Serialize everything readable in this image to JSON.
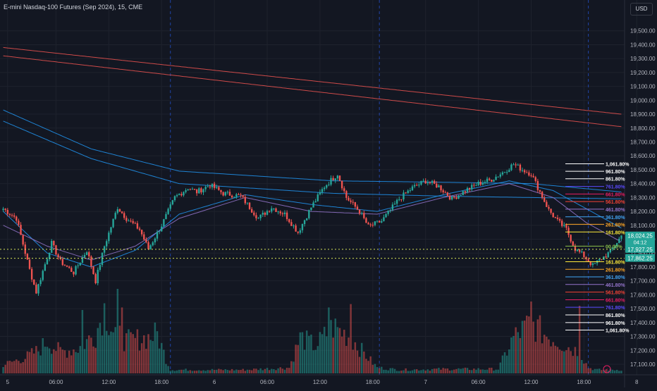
{
  "header": {
    "title": "E-mini Nasdaq-100 Futures (Sep 2024), 15, CME",
    "currency": "USD"
  },
  "colors": {
    "bg": "#131722",
    "grid": "#1e222d",
    "up": "#26a69a",
    "down": "#ef5350"
  },
  "chart_data": {
    "type": "candlestick",
    "ylim": [
      17100,
      19600
    ],
    "y_ticks": [
      17100,
      17200,
      17300,
      17400,
      17500,
      17600,
      17700,
      17800,
      17900,
      18000,
      18100,
      18200,
      18300,
      18400,
      18500,
      18600,
      18700,
      18800,
      18900,
      19000,
      19100,
      19200,
      19300,
      19400,
      19500
    ],
    "y_tick_labels": [
      "17,100.00",
      "17,200.00",
      "17,300.00",
      "17,400.00",
      "17,500.00",
      "17,600.00",
      "17,700.00",
      "17,800.00",
      "17,900.00",
      "18,000.00",
      "18,100.00",
      "18,200.00",
      "18,300.00",
      "18,400.00",
      "18,500.00",
      "18,600.00",
      "18,700.00",
      "18,800.00",
      "18,900.00",
      "19,000.00",
      "19,100.00",
      "19,200.00",
      "19,300.00",
      "19,400.00",
      "19,500.00"
    ],
    "x_ticks": [
      {
        "label": "5",
        "bar": 2
      },
      {
        "label": "06:00",
        "bar": 24
      },
      {
        "label": "12:00",
        "bar": 48
      },
      {
        "label": "18:00",
        "bar": 72
      },
      {
        "label": "6",
        "bar": 96
      },
      {
        "label": "06:00",
        "bar": 120
      },
      {
        "label": "12:00",
        "bar": 144
      },
      {
        "label": "18:00",
        "bar": 168
      },
      {
        "label": "7",
        "bar": 192
      },
      {
        "label": "06:00",
        "bar": 216
      },
      {
        "label": "12:00",
        "bar": 240
      },
      {
        "label": "18:00",
        "bar": 264
      },
      {
        "label": "8",
        "bar": 288
      }
    ],
    "session_breaks": [
      76,
      171,
      266
    ],
    "price_path": [
      [
        0,
        18220
      ],
      [
        6,
        18150
      ],
      [
        12,
        17780
      ],
      [
        15,
        17620
      ],
      [
        22,
        17970
      ],
      [
        26,
        17840
      ],
      [
        32,
        17760
      ],
      [
        38,
        17920
      ],
      [
        42,
        17700
      ],
      [
        46,
        17950
      ],
      [
        52,
        18230
      ],
      [
        56,
        18150
      ],
      [
        62,
        18070
      ],
      [
        66,
        17930
      ],
      [
        72,
        18100
      ],
      [
        78,
        18300
      ],
      [
        84,
        18370
      ],
      [
        88,
        18340
      ],
      [
        94,
        18390
      ],
      [
        100,
        18330
      ],
      [
        108,
        18310
      ],
      [
        116,
        18150
      ],
      [
        122,
        18230
      ],
      [
        128,
        18180
      ],
      [
        134,
        18050
      ],
      [
        140,
        18230
      ],
      [
        146,
        18380
      ],
      [
        152,
        18470
      ],
      [
        156,
        18300
      ],
      [
        162,
        18200
      ],
      [
        166,
        18090
      ],
      [
        172,
        18130
      ],
      [
        180,
        18290
      ],
      [
        186,
        18370
      ],
      [
        192,
        18420
      ],
      [
        198,
        18380
      ],
      [
        204,
        18290
      ],
      [
        210,
        18350
      ],
      [
        216,
        18400
      ],
      [
        222,
        18430
      ],
      [
        228,
        18490
      ],
      [
        232,
        18540
      ],
      [
        236,
        18500
      ],
      [
        240,
        18470
      ],
      [
        244,
        18340
      ],
      [
        248,
        18210
      ],
      [
        252,
        18130
      ],
      [
        256,
        18070
      ],
      [
        260,
        17930
      ],
      [
        264,
        17880
      ],
      [
        268,
        17810
      ],
      [
        272,
        17860
      ],
      [
        276,
        17910
      ],
      [
        281,
        18024
      ]
    ],
    "volume_profile": [
      [
        0,
        0.12
      ],
      [
        10,
        0.22
      ],
      [
        16,
        0.32
      ],
      [
        20,
        0.45
      ],
      [
        26,
        0.3
      ],
      [
        34,
        0.35
      ],
      [
        42,
        0.55
      ],
      [
        46,
        0.9
      ],
      [
        50,
        0.6
      ],
      [
        56,
        0.45
      ],
      [
        66,
        0.5
      ],
      [
        70,
        0.55
      ],
      [
        74,
        0.2
      ],
      [
        76,
        0.05
      ],
      [
        90,
        0.05
      ],
      [
        110,
        0.05
      ],
      [
        130,
        0.08
      ],
      [
        135,
        0.5
      ],
      [
        142,
        0.38
      ],
      [
        150,
        0.65
      ],
      [
        158,
        0.5
      ],
      [
        164,
        0.28
      ],
      [
        170,
        0.08
      ],
      [
        180,
        0.05
      ],
      [
        200,
        0.06
      ],
      [
        225,
        0.06
      ],
      [
        232,
        0.5
      ],
      [
        240,
        0.7
      ],
      [
        246,
        0.55
      ],
      [
        252,
        0.45
      ],
      [
        258,
        0.35
      ],
      [
        262,
        0.3
      ],
      [
        266,
        0.08
      ],
      [
        270,
        0.05
      ],
      [
        281,
        0.05
      ]
    ],
    "volume_spikes": [
      [
        36,
        0.75
      ],
      [
        52,
        1.0
      ],
      [
        54,
        0.78
      ],
      [
        148,
        0.78
      ],
      [
        158,
        0.82
      ],
      [
        240,
        0.85
      ],
      [
        262,
        0.8
      ]
    ],
    "moving_averages": [
      {
        "color": "#ef5350",
        "points": [
          [
            0,
            19380
          ],
          [
            281,
            18900
          ]
        ]
      },
      {
        "color": "#ef5350",
        "points": [
          [
            0,
            19320
          ],
          [
            281,
            18810
          ]
        ]
      },
      {
        "color": "#2196f3",
        "points": [
          [
            0,
            18930
          ],
          [
            40,
            18650
          ],
          [
            80,
            18490
          ],
          [
            150,
            18420
          ],
          [
            200,
            18410
          ],
          [
            240,
            18400
          ],
          [
            281,
            18340
          ]
        ]
      },
      {
        "color": "#2196f3",
        "points": [
          [
            0,
            18850
          ],
          [
            40,
            18580
          ],
          [
            80,
            18400
          ],
          [
            150,
            18330
          ],
          [
            200,
            18310
          ],
          [
            240,
            18300
          ],
          [
            281,
            18290
          ]
        ]
      },
      {
        "color": "#2196f3",
        "points": [
          [
            0,
            18200
          ],
          [
            20,
            17900
          ],
          [
            40,
            17800
          ],
          [
            60,
            17920
          ],
          [
            80,
            18180
          ],
          [
            110,
            18320
          ],
          [
            140,
            18250
          ],
          [
            170,
            18200
          ],
          [
            200,
            18320
          ],
          [
            230,
            18420
          ],
          [
            250,
            18350
          ],
          [
            265,
            18220
          ],
          [
            281,
            18080
          ]
        ]
      },
      {
        "color": "#9575cd",
        "points": [
          [
            0,
            18100
          ],
          [
            20,
            17950
          ],
          [
            40,
            17850
          ],
          [
            60,
            17950
          ],
          [
            80,
            18150
          ],
          [
            110,
            18300
          ],
          [
            140,
            18200
          ],
          [
            170,
            18180
          ],
          [
            200,
            18300
          ],
          [
            230,
            18400
          ],
          [
            250,
            18300
          ],
          [
            265,
            18120
          ],
          [
            281,
            17980
          ]
        ]
      }
    ],
    "current_price": 18024.25,
    "price_labels": [
      {
        "value": 18024.25,
        "text": "18,024.25",
        "sub": "04:12",
        "color": "#26a69a"
      },
      {
        "value": 17927.25,
        "text": "17,927.25",
        "color": "#26a69a"
      },
      {
        "value": 17862.25,
        "text": "17,862.25",
        "color": "#26a69a"
      }
    ],
    "dotted_lines": [
      {
        "value": 17927.25,
        "color": "#d4e157"
      },
      {
        "value": 17862.25,
        "color": "#d4e157"
      }
    ],
    "fib_levels": [
      {
        "label": "1,061.80%",
        "value": 18543,
        "color": "#ffffff"
      },
      {
        "label": "961.80%",
        "value": 18489,
        "color": "#ffffff"
      },
      {
        "label": "861.80%",
        "value": 18435,
        "color": "#ffffff"
      },
      {
        "label": "761.80%",
        "value": 18380,
        "color": "#5c4bff"
      },
      {
        "label": "661.80%",
        "value": 18325,
        "color": "#e91e63"
      },
      {
        "label": "561.80%",
        "value": 18271,
        "color": "#f44336"
      },
      {
        "label": "461.80%",
        "value": 18216,
        "color": "#9575cd"
      },
      {
        "label": "361.80%",
        "value": 18161,
        "color": "#42a5f5"
      },
      {
        "label": "261.80%",
        "value": 18107,
        "color": "#ffa726"
      },
      {
        "label": "161.80%",
        "value": 18052,
        "color": "#ffeb3b"
      },
      {
        "label": "00.00%",
        "value": 17950,
        "color": "#8bc34a"
      },
      {
        "label": "161.80%",
        "value": 17838,
        "color": "#ffeb3b"
      },
      {
        "label": "261.80%",
        "value": 17783,
        "color": "#ffa726"
      },
      {
        "label": "361.80%",
        "value": 17729,
        "color": "#42a5f5"
      },
      {
        "label": "461.80%",
        "value": 17674,
        "color": "#9575cd"
      },
      {
        "label": "561.80%",
        "value": 17619,
        "color": "#f44336"
      },
      {
        "label": "661.80%",
        "value": 17564,
        "color": "#e91e63"
      },
      {
        "label": "761.80%",
        "value": 17510,
        "color": "#5c4bff"
      },
      {
        "label": "861.80%",
        "value": 17455,
        "color": "#ffffff"
      },
      {
        "label": "961.80%",
        "value": 17400,
        "color": "#ffffff"
      },
      {
        "label": "1,061.80%",
        "value": 17346,
        "color": "#ffffff"
      }
    ]
  }
}
